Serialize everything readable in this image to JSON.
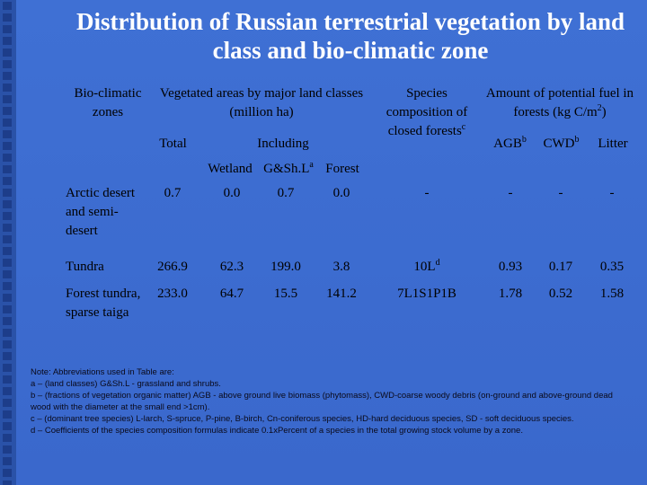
{
  "title": "Distribution of Russian terrestrial vegetation by land class and bio-climatic zone",
  "table": {
    "headers": {
      "zones": "Bio-climatic zones",
      "vegetated": "Vegetated areas by major land classes (million ha)",
      "species": {
        "text": "Species composition of closed forests",
        "sup": "c"
      },
      "fuel": {
        "text": "Amount of potential fuel in forests (kg C/m",
        "sup": "2",
        "after": ")"
      },
      "total": "Total",
      "including": "Including",
      "agb": {
        "text": "AGB",
        "sup": "b"
      },
      "cwd": {
        "text": "CWD",
        "sup": "b"
      },
      "litter": "Litter",
      "wetland": "Wetland",
      "gsh": {
        "text": "G&Sh.L",
        "sup": "a"
      },
      "forest": "Forest"
    },
    "rows": [
      [
        "Arctic desert and semi-desert",
        "0.7",
        "0.0",
        "0.7",
        "0.0",
        "-",
        "-",
        "-",
        "-"
      ],
      [
        "Tundra",
        "266.9",
        "62.3",
        "199.0",
        "3.8",
        {
          "text": "10L",
          "sup": "d"
        },
        "0.93",
        "0.17",
        "0.35"
      ],
      [
        "Forest tundra, sparse taiga",
        "233.0",
        "64.7",
        "15.5",
        "141.2",
        "7L1S1P1B",
        "1.78",
        "0.52",
        "1.58"
      ]
    ]
  },
  "notes": [
    "Note: Abbreviations used in Table are:",
    "a – (land classes) G&Sh.L - grassland and shrubs.",
    "b – (fractions of vegetation organic matter) AGB - above ground live biomass (phytomass), CWD-coarse woody debris (on-ground and above-ground dead wood with the diameter at the small end >1cm).",
    "c – (dominant tree species) L-larch, S-spruce, P-pine, B-birch, Cn-coniferous species, HD-hard deciduous species, SD - soft deciduous species.",
    "d – Coefficients of the species composition formulas indicate 0.1xPercent of a species in the total growing stock volume by a zone."
  ]
}
